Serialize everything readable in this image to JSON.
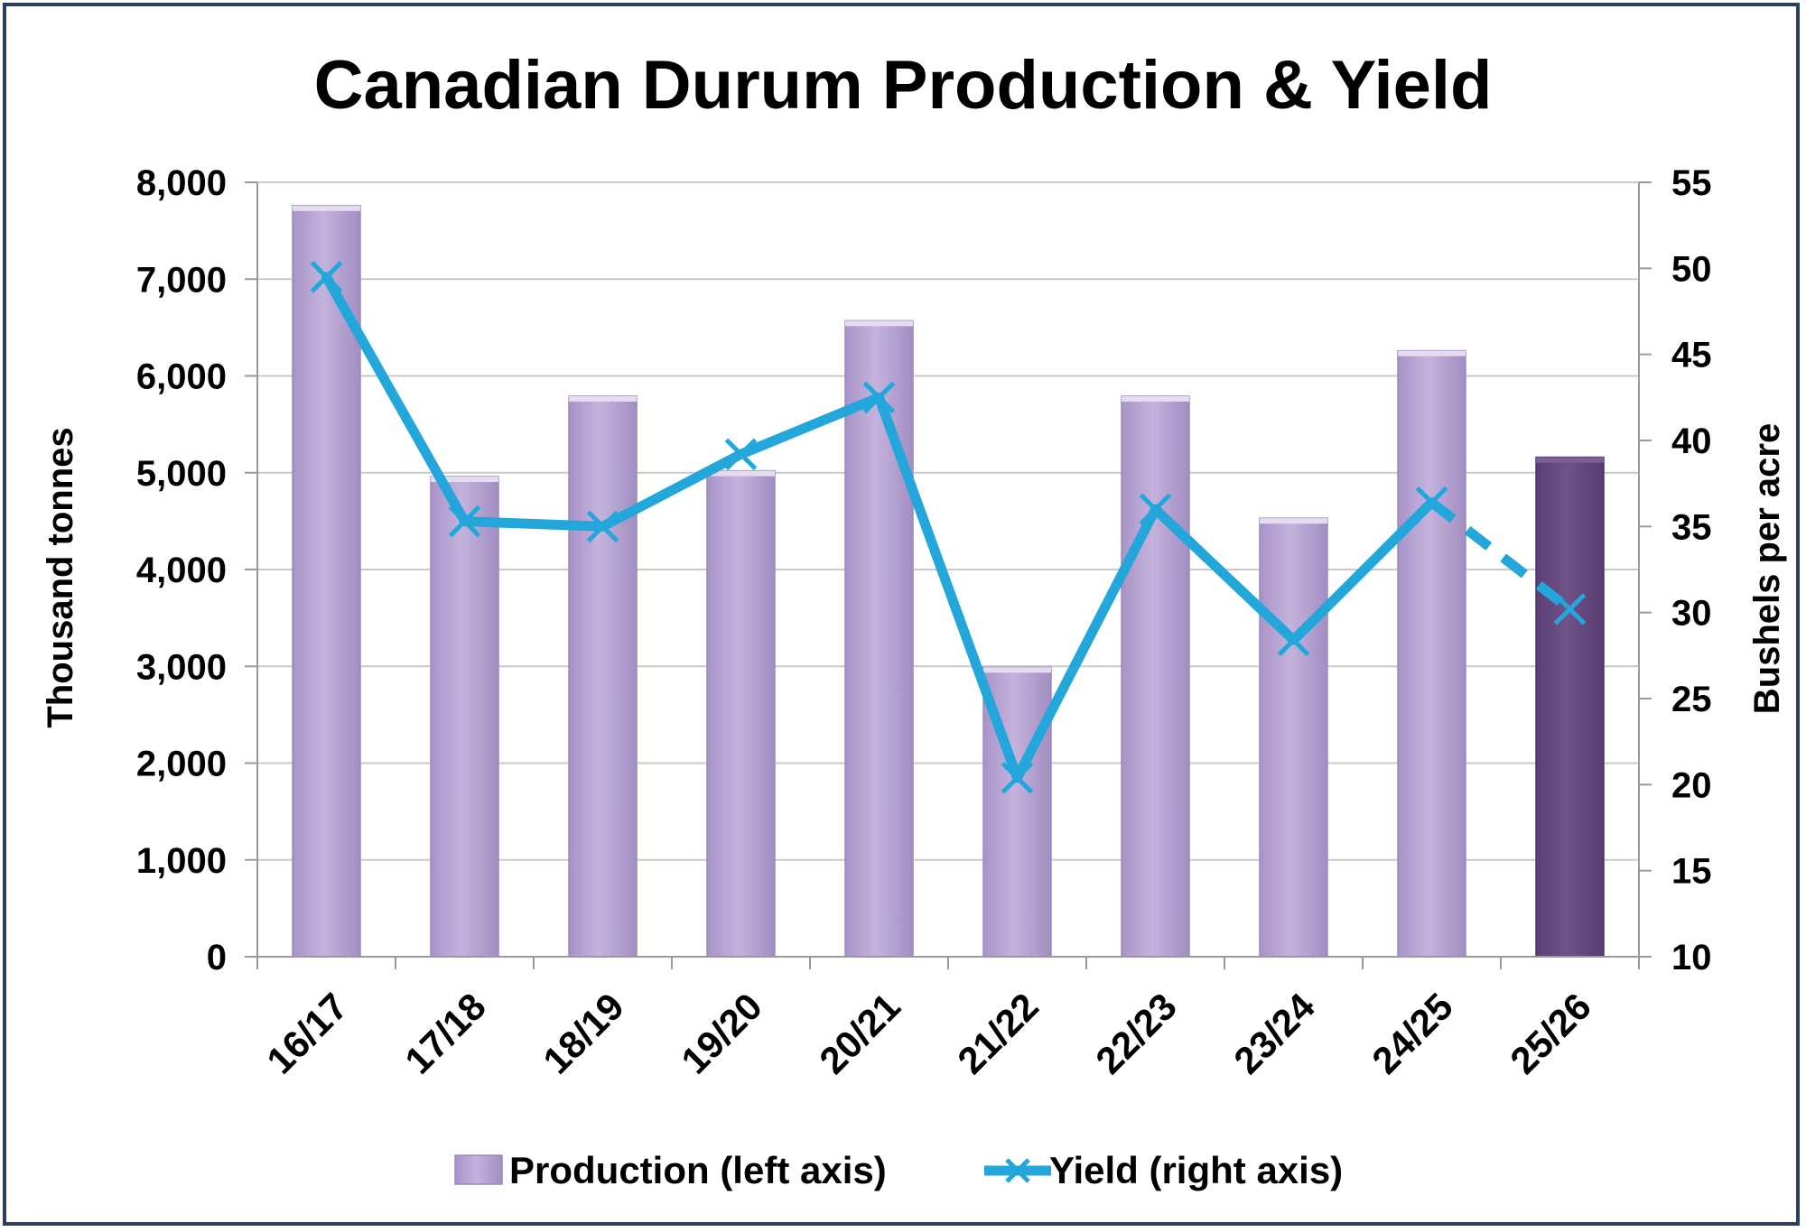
{
  "chart_data": {
    "type": "bar",
    "title": "Canadian Durum Production & Yield",
    "categories": [
      "16/17",
      "17/18",
      "18/19",
      "19/20",
      "20/21",
      "21/22",
      "22/23",
      "23/24",
      "24/25",
      "25/26"
    ],
    "series": [
      {
        "name": "Production (left axis)",
        "type": "bar",
        "axis": "left",
        "values": [
          7760,
          4960,
          5790,
          5020,
          6570,
          2990,
          5790,
          4530,
          6260,
          5160
        ],
        "color": "#b7a5d2",
        "highlight_color": "#65497f",
        "highlight_category": "25/26"
      },
      {
        "name": "Yield (right axis)",
        "type": "line",
        "axis": "right",
        "values": [
          49.5,
          35.3,
          35.0,
          39.2,
          42.5,
          20.4,
          36.0,
          28.4,
          36.4,
          30.2
        ],
        "color": "#23a6da",
        "dashed_from_category": "24/25",
        "marker": "x"
      }
    ],
    "ylabel": "Thousand tonnes",
    "ylabel_right": "Bushels per acre",
    "ylim": [
      0,
      8000
    ],
    "ylim_right": [
      10,
      55
    ],
    "yticks": [
      "0",
      "1,000",
      "2,000",
      "3,000",
      "4,000",
      "5,000",
      "6,000",
      "7,000",
      "8,000"
    ],
    "yticks_right": [
      "10",
      "15",
      "20",
      "25",
      "30",
      "35",
      "40",
      "45",
      "50",
      "55"
    ],
    "grid": true,
    "legend_position": "bottom"
  }
}
